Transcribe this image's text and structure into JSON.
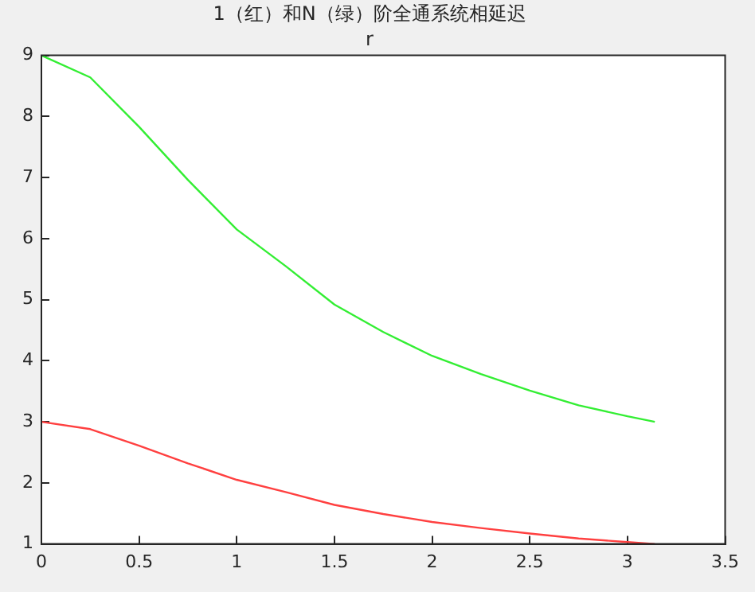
{
  "chart_data": {
    "type": "line",
    "title": "1（红）和N（绿）阶全通系统相延迟",
    "subtitle": "r",
    "x": [
      0,
      0.25,
      0.5,
      0.75,
      1,
      1.25,
      1.5,
      1.75,
      2,
      2.25,
      2.5,
      2.75,
      3,
      3.14
    ],
    "series": [
      {
        "color": "#ff4040",
        "values": [
          3,
          2.88,
          2.61,
          2.32,
          2.05,
          1.85,
          1.64,
          1.49,
          1.36,
          1.26,
          1.17,
          1.09,
          1.03,
          1.0
        ]
      },
      {
        "color": "#33ee33",
        "values": [
          9,
          8.64,
          7.83,
          6.96,
          6.15,
          5.55,
          4.92,
          4.47,
          4.08,
          3.78,
          3.51,
          3.27,
          3.09,
          3.0
        ]
      }
    ],
    "xlim": [
      0,
      3.5
    ],
    "xticks": [
      0,
      0.5,
      1,
      1.5,
      2,
      2.5,
      3,
      3.5
    ],
    "ylim": [
      1,
      9
    ],
    "yticks": [
      1,
      2,
      3,
      4,
      5,
      6,
      7,
      8,
      9
    ],
    "grid": false,
    "legend": false,
    "marker": "none",
    "line_style": "solid"
  }
}
